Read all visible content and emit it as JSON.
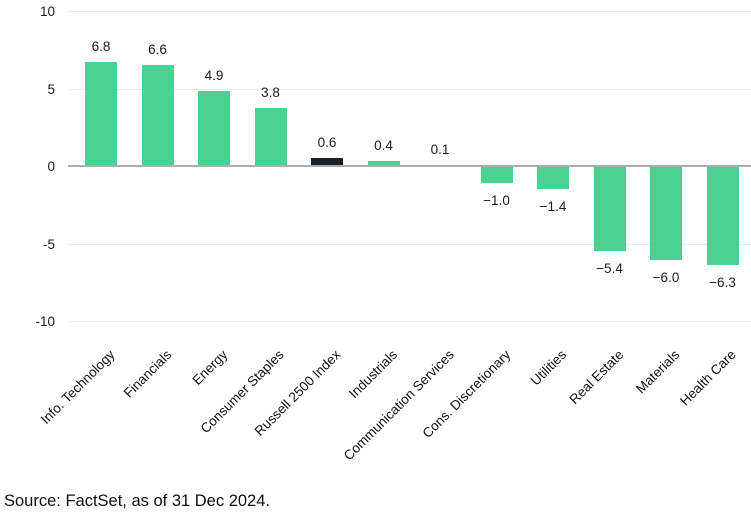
{
  "source": "Source: FactSet, as of 31 Dec 2024.",
  "colors": {
    "bar_green": "#4bd191",
    "bar_dark": "#16212b",
    "zero_axis": "#a9aeb4",
    "gridline": "#ececec",
    "text": "#1c1c1c"
  },
  "chart_data": {
    "type": "bar",
    "categories": [
      "Info. Technology",
      "Financials",
      "Energy",
      "Consumer Staples",
      "Russell 2500 Index",
      "Industrials",
      "Communication Services",
      "Cons. Discretionary",
      "Utilities",
      "Real Estate",
      "Materials",
      "Health Care"
    ],
    "values": [
      6.8,
      6.6,
      4.9,
      3.8,
      0.6,
      0.4,
      0.1,
      -1.0,
      -1.4,
      -5.4,
      -6.0,
      -6.3
    ],
    "value_labels": [
      "6.8",
      "6.6",
      "4.9",
      "3.8",
      "0.6",
      "0.4",
      "0.1",
      "−1.0",
      "−1.4",
      "−5.4",
      "−6.0",
      "−6.3"
    ],
    "highlight_index": 4,
    "highlight_category": "Russell 2500 Index",
    "ylim": [
      -10,
      10
    ],
    "yticks": [
      {
        "value": 10,
        "label": "10"
      },
      {
        "value": 5,
        "label": "5"
      },
      {
        "value": 0,
        "label": "0"
      },
      {
        "value": -5,
        "label": "-5"
      },
      {
        "value": -10,
        "label": "-10"
      }
    ],
    "grid": "horizontal",
    "legend": "none",
    "xlabel": "",
    "ylabel": ""
  }
}
